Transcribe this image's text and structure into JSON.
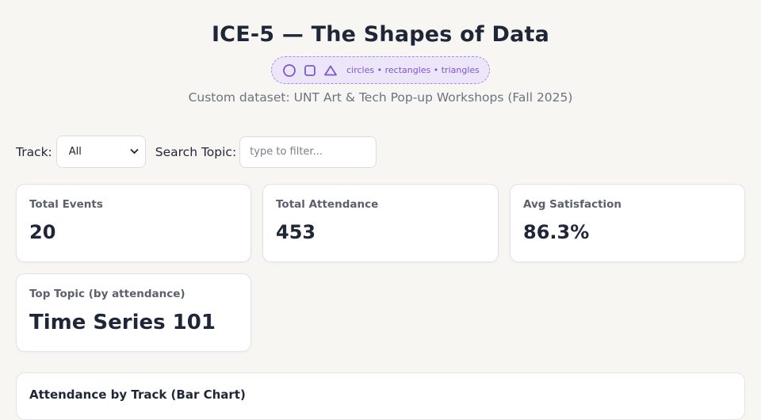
{
  "header": {
    "title": "ICE-5 — The Shapes of Data",
    "shapes_caption": "circles • rectangles • triangles",
    "subtitle": "Custom dataset: UNT Art & Tech Pop-up Workshops (Fall 2025)",
    "accent_color": "#7a58cc"
  },
  "filters": {
    "track_label": "Track:",
    "track_selected": "All",
    "search_label": "Search Topic:",
    "search_placeholder": "type to filter...",
    "search_value": ""
  },
  "kpis": [
    {
      "label": "Total Events",
      "value": "20"
    },
    {
      "label": "Total Attendance",
      "value": "453"
    },
    {
      "label": "Avg Satisfaction",
      "value": "86.3%"
    },
    {
      "label": "Top Topic (by attendance)",
      "value": "Time Series 101"
    }
  ],
  "chart_section": {
    "title": "Attendance by Track (Bar Chart)"
  }
}
